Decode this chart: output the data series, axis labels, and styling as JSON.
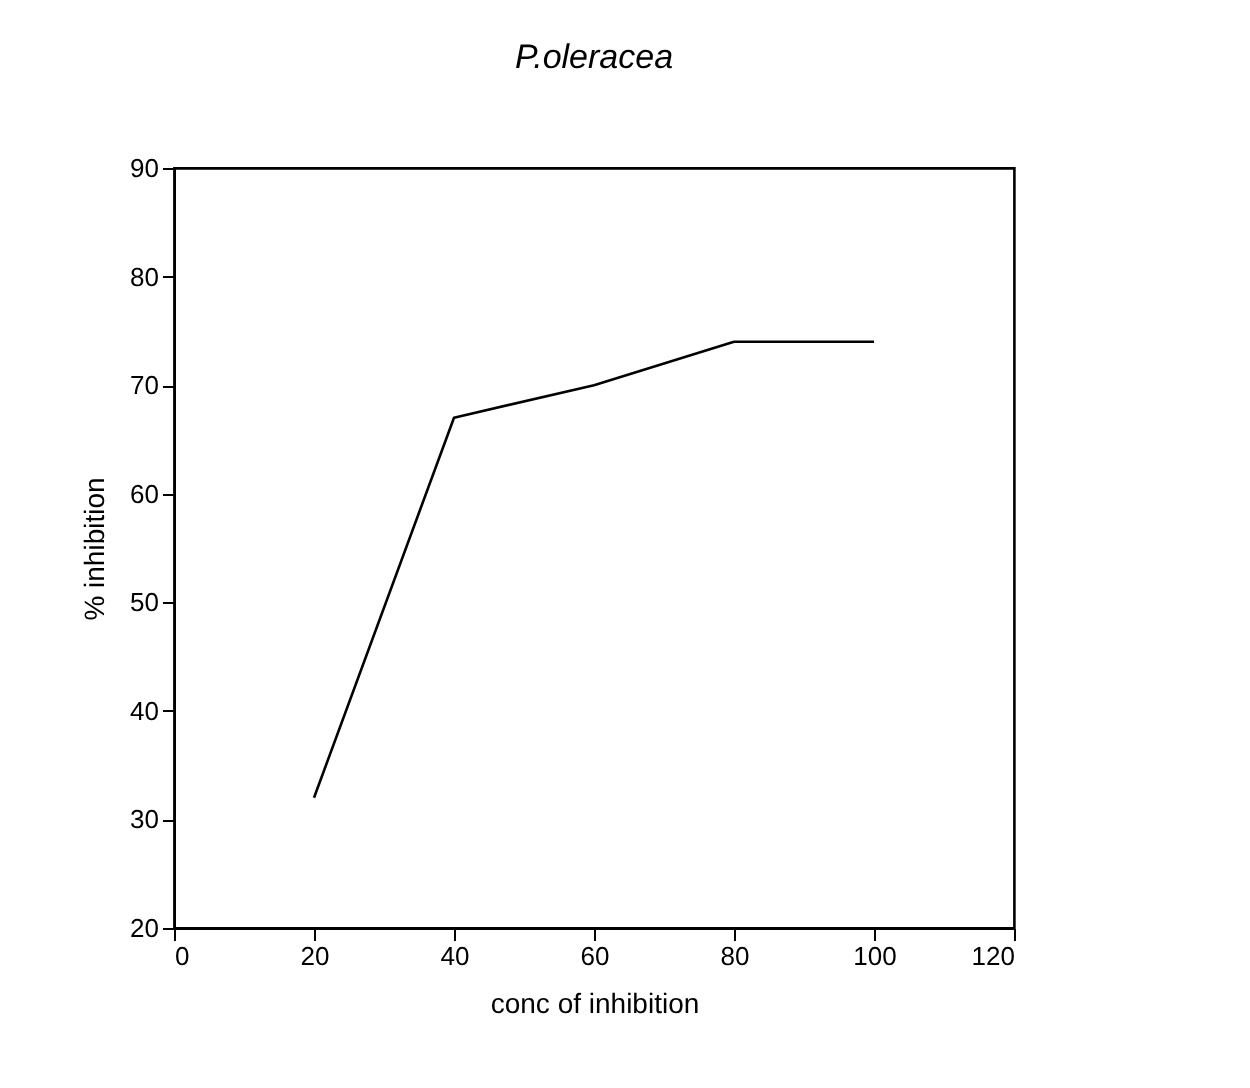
{
  "chart_data": {
    "type": "line",
    "title": "P.oleracea",
    "xlabel": "conc of inhibition",
    "ylabel": "% inhibition",
    "x": [
      20,
      40,
      60,
      80,
      100
    ],
    "series": [
      {
        "color": "#000000",
        "values": [
          32,
          67,
          70,
          74,
          74
        ]
      }
    ],
    "xlim": [
      0,
      120
    ],
    "xticks": [
      0,
      20,
      40,
      60,
      80,
      100,
      120
    ],
    "ylim": [
      20,
      90
    ],
    "yticks": [
      20,
      30,
      40,
      50,
      60,
      70,
      80,
      90
    ],
    "grid": false,
    "legend": false,
    "marker": "none",
    "line_style": "solid"
  }
}
